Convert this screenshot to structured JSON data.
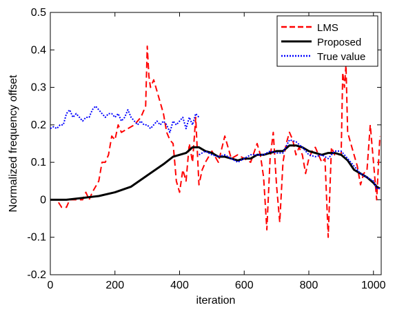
{
  "chart_data": {
    "type": "line",
    "xlabel": "iteration",
    "ylabel": "Normalized frequency offset",
    "xlim": [
      0,
      1024
    ],
    "ylim": [
      -0.2,
      0.5
    ],
    "x_ticks": [
      0,
      200,
      400,
      600,
      800,
      1000
    ],
    "x_tick_labels": [
      "0",
      "200",
      "400",
      "600",
      "800",
      "1000"
    ],
    "y_ticks": [
      -0.2,
      -0.1,
      0,
      0.1,
      0.2,
      0.3,
      0.4,
      0.5
    ],
    "y_tick_labels": [
      "-0.2",
      "-0.1",
      "0",
      "0.1",
      "0.2",
      "0.3",
      "0.4",
      "0.5"
    ],
    "grid": false,
    "legend_position": "top-right",
    "series": [
      {
        "name": "LMS",
        "color": "#ff0000",
        "style": "dashed",
        "x": [
          0,
          20,
          35,
          50,
          60,
          80,
          100,
          110,
          120,
          130,
          150,
          160,
          170,
          180,
          190,
          200,
          210,
          220,
          240,
          260,
          280,
          295,
          300,
          305,
          310,
          320,
          340,
          350,
          360,
          370,
          380,
          385,
          390,
          400,
          410,
          420,
          430,
          440,
          450,
          460,
          470,
          480,
          500,
          520,
          540,
          560,
          580,
          600,
          620,
          640,
          650,
          660,
          670,
          680,
          690,
          700,
          710,
          720,
          730,
          740,
          750,
          760,
          770,
          780,
          790,
          800,
          810,
          820,
          830,
          840,
          850,
          860,
          870,
          880,
          890,
          900,
          905,
          910,
          915,
          920,
          930,
          940,
          950,
          960,
          970,
          980,
          990,
          1000,
          1010,
          1020
        ],
        "y": [
          0.0,
          0.0,
          -0.02,
          -0.02,
          0.0,
          0.0,
          0.0,
          0.02,
          0.0,
          0.02,
          0.05,
          0.1,
          0.1,
          0.12,
          0.17,
          0.16,
          0.2,
          0.18,
          0.19,
          0.2,
          0.22,
          0.25,
          0.41,
          0.33,
          0.3,
          0.32,
          0.26,
          0.23,
          0.18,
          0.16,
          0.15,
          0.1,
          0.05,
          0.02,
          0.08,
          0.05,
          0.15,
          0.1,
          0.22,
          0.04,
          0.08,
          0.1,
          0.13,
          0.1,
          0.17,
          0.11,
          0.12,
          0.11,
          0.1,
          0.15,
          0.12,
          0.06,
          -0.08,
          0.11,
          0.18,
          0.04,
          -0.06,
          0.1,
          0.15,
          0.18,
          0.16,
          0.12,
          0.14,
          0.12,
          0.07,
          0.11,
          0.13,
          0.14,
          0.12,
          0.1,
          0.11,
          -0.1,
          0.14,
          0.12,
          0.12,
          0.12,
          0.34,
          0.3,
          0.36,
          0.18,
          0.15,
          0.12,
          0.09,
          0.04,
          0.07,
          0.08,
          0.2,
          0.1,
          0.0,
          0.17
        ]
      },
      {
        "name": "Proposed",
        "color": "#000000",
        "style": "solid",
        "x": [
          0,
          50,
          100,
          150,
          200,
          250,
          300,
          350,
          380,
          400,
          420,
          440,
          460,
          480,
          500,
          520,
          540,
          560,
          580,
          600,
          620,
          640,
          660,
          680,
          700,
          720,
          740,
          760,
          780,
          800,
          820,
          840,
          860,
          880,
          900,
          920,
          940,
          960,
          980,
          1000,
          1010,
          1020
        ],
        "y": [
          0.0,
          0.0,
          0.005,
          0.01,
          0.02,
          0.035,
          0.065,
          0.095,
          0.115,
          0.12,
          0.125,
          0.14,
          0.14,
          0.13,
          0.125,
          0.115,
          0.115,
          0.11,
          0.105,
          0.11,
          0.11,
          0.12,
          0.12,
          0.125,
          0.13,
          0.13,
          0.145,
          0.145,
          0.14,
          0.13,
          0.125,
          0.12,
          0.125,
          0.125,
          0.12,
          0.105,
          0.08,
          0.07,
          0.06,
          0.045,
          0.035,
          0.03
        ]
      },
      {
        "name": "True value",
        "color": "#0000ff",
        "style": "dotted",
        "x": [
          0,
          10,
          20,
          30,
          40,
          50,
          60,
          70,
          80,
          90,
          100,
          110,
          120,
          130,
          140,
          150,
          160,
          170,
          180,
          190,
          200,
          210,
          220,
          230,
          240,
          250,
          260,
          270,
          280,
          290,
          300,
          310,
          320,
          330,
          340,
          350,
          360,
          370,
          380,
          390,
          400,
          410,
          420,
          430,
          440,
          450,
          460,
          null,
          460,
          480,
          500,
          520,
          540,
          560,
          580,
          600,
          620,
          640,
          660,
          680,
          700,
          720,
          740,
          760,
          780,
          800,
          820,
          840,
          860,
          880,
          900,
          920,
          940,
          960,
          980,
          1000,
          1010,
          1020
        ],
        "y": [
          0.19,
          0.195,
          0.19,
          0.2,
          0.2,
          0.23,
          0.24,
          0.22,
          0.23,
          0.22,
          0.21,
          0.22,
          0.22,
          0.24,
          0.25,
          0.24,
          0.23,
          0.22,
          0.23,
          0.23,
          0.22,
          0.23,
          0.21,
          0.22,
          0.24,
          0.22,
          0.21,
          0.2,
          0.21,
          0.2,
          0.2,
          0.19,
          0.2,
          0.21,
          0.2,
          0.21,
          0.2,
          0.18,
          0.21,
          0.2,
          0.21,
          0.22,
          0.19,
          0.22,
          0.2,
          0.23,
          0.22,
          null,
          0.12,
          0.13,
          0.12,
          0.115,
          0.12,
          0.11,
          0.1,
          0.11,
          0.12,
          0.12,
          0.12,
          0.13,
          0.125,
          0.125,
          0.16,
          0.155,
          0.14,
          0.12,
          0.115,
          0.12,
          0.11,
          0.13,
          0.13,
          0.11,
          0.09,
          0.07,
          0.06,
          0.05,
          0.03,
          0.03
        ]
      }
    ]
  }
}
